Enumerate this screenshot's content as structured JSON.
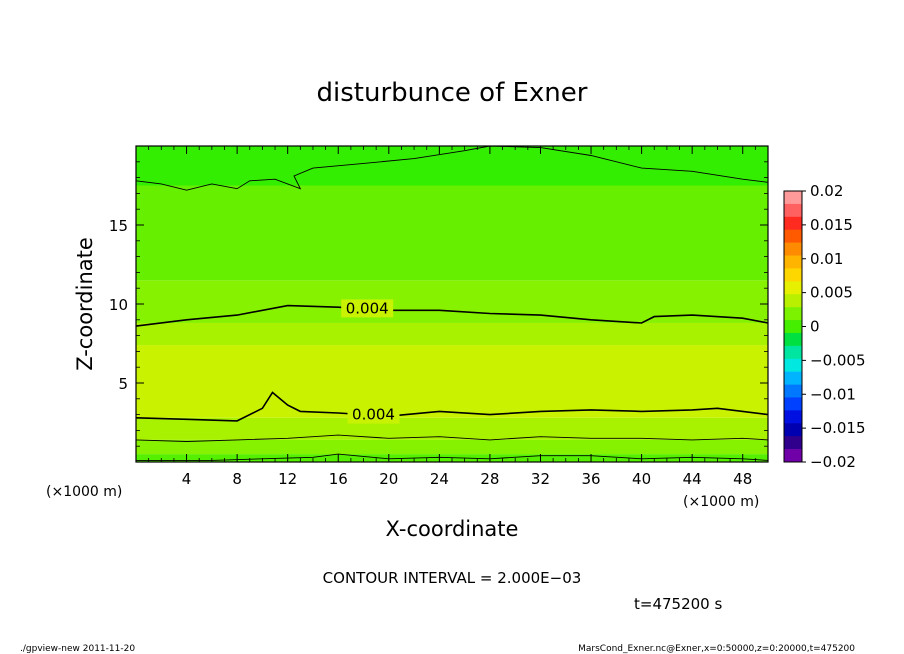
{
  "chart_data": {
    "type": "heatmap",
    "title": "disturbunce of Exner",
    "xlabel": "X-coordinate",
    "ylabel": "Z-coordinate",
    "x_unit": "(×1000 m)",
    "y_unit": "(×1000 m)",
    "xlim": [
      0,
      50
    ],
    "ylim": [
      0,
      20
    ],
    "x_ticks": [
      "4",
      "8",
      "12",
      "16",
      "20",
      "24",
      "28",
      "32",
      "36",
      "40",
      "44",
      "48"
    ],
    "y_ticks": [
      "5",
      "10",
      "15"
    ],
    "x_tick_values": [
      4,
      8,
      12,
      16,
      20,
      24,
      28,
      32,
      36,
      40,
      44,
      48
    ],
    "y_tick_values": [
      5,
      10,
      15
    ],
    "colorbar": {
      "ticks": [
        "0.02",
        "0.015",
        "0.01",
        "0.005",
        "0",
        "−0.005",
        "−0.01",
        "−0.015",
        "−0.02"
      ],
      "tick_values": [
        0.02,
        0.015,
        0.01,
        0.005,
        0,
        -0.005,
        -0.01,
        -0.015,
        -0.02
      ],
      "levels": [
        0.02,
        0.018,
        0.016,
        0.014,
        0.012,
        0.01,
        0.008,
        0.006,
        0.004,
        0.002,
        0,
        -0.002,
        -0.004,
        -0.006,
        -0.008,
        -0.01,
        -0.012,
        -0.014,
        -0.016,
        -0.018,
        -0.02
      ],
      "colors": [
        "#ff9a9a",
        "#ff6060",
        "#ff2a20",
        "#ff5a00",
        "#ff8c00",
        "#ffb400",
        "#ffd700",
        "#e6f000",
        "#b8f000",
        "#7cf200",
        "#46ee00",
        "#00e040",
        "#00e6a0",
        "#00e8e0",
        "#00b4ff",
        "#0078ff",
        "#0040ff",
        "#0010e0",
        "#0000b0",
        "#30008c",
        "#7000a8"
      ]
    },
    "bands": [
      {
        "z_bottom": 0.0,
        "z_top": 0.5,
        "value_range": [
          0.002,
          0.004
        ],
        "color": "#55f000"
      },
      {
        "z_bottom": 0.5,
        "z_top": 1.4,
        "value_range": [
          0.004,
          0.006
        ],
        "color": "#86f200"
      },
      {
        "z_bottom": 1.4,
        "z_top": 2.8,
        "value_range": [
          0.006,
          0.008
        ],
        "color": "#a8f200"
      },
      {
        "z_bottom": 2.8,
        "z_top": 7.4,
        "value_range": [
          0.008,
          0.01
        ],
        "color": "#c8f200"
      },
      {
        "z_bottom": 7.4,
        "z_top": 8.8,
        "value_range": [
          0.006,
          0.008
        ],
        "color": "#a8f200"
      },
      {
        "z_bottom": 8.8,
        "z_top": 11.5,
        "value_range": [
          0.004,
          0.006
        ],
        "color": "#86f200"
      },
      {
        "z_bottom": 11.5,
        "z_top": 17.5,
        "value_range": [
          0.002,
          0.004
        ],
        "color": "#66f000"
      },
      {
        "z_bottom": 17.5,
        "z_top": 20.0,
        "value_range": [
          0.0,
          0.002
        ],
        "color": "#33ee00"
      }
    ],
    "contours": [
      {
        "value": 0.004,
        "label": "0.004",
        "label_x": 18.0,
        "points": [
          [
            0,
            2.8
          ],
          [
            4,
            2.7
          ],
          [
            8,
            2.6
          ],
          [
            10,
            3.4
          ],
          [
            10.8,
            4.4
          ],
          [
            12,
            3.6
          ],
          [
            13,
            3.2
          ],
          [
            16,
            3.1
          ],
          [
            20,
            2.9
          ],
          [
            24,
            3.2
          ],
          [
            28,
            3.0
          ],
          [
            32,
            3.2
          ],
          [
            36,
            3.3
          ],
          [
            40,
            3.2
          ],
          [
            44,
            3.3
          ],
          [
            46,
            3.4
          ],
          [
            50,
            3.0
          ]
        ]
      },
      {
        "value": 0.004,
        "label": "0.004",
        "label_x": 17.5,
        "points": [
          [
            0,
            8.6
          ],
          [
            4,
            9.0
          ],
          [
            8,
            9.3
          ],
          [
            12,
            9.9
          ],
          [
            16,
            9.8
          ],
          [
            20,
            9.6
          ],
          [
            24,
            9.6
          ],
          [
            28,
            9.4
          ],
          [
            32,
            9.3
          ],
          [
            36,
            9.0
          ],
          [
            40,
            8.8
          ],
          [
            41,
            9.2
          ],
          [
            44,
            9.3
          ],
          [
            48,
            9.1
          ],
          [
            50,
            8.8
          ]
        ]
      },
      {
        "value": 0.006,
        "label": "",
        "points": [
          [
            0,
            1.4
          ],
          [
            4,
            1.3
          ],
          [
            8,
            1.4
          ],
          [
            12,
            1.5
          ],
          [
            16,
            1.7
          ],
          [
            20,
            1.5
          ],
          [
            24,
            1.6
          ],
          [
            28,
            1.4
          ],
          [
            32,
            1.6
          ],
          [
            36,
            1.5
          ],
          [
            40,
            1.5
          ],
          [
            44,
            1.4
          ],
          [
            48,
            1.5
          ],
          [
            50,
            1.4
          ]
        ]
      },
      {
        "value": 0.002,
        "label": "",
        "points": [
          [
            0,
            0.1
          ],
          [
            6,
            0.1
          ],
          [
            10,
            0.2
          ],
          [
            14,
            0.3
          ],
          [
            16,
            0.5
          ],
          [
            20,
            0.2
          ],
          [
            24,
            0.3
          ],
          [
            28,
            0.2
          ],
          [
            32,
            0.4
          ],
          [
            36,
            0.4
          ],
          [
            40,
            0.2
          ],
          [
            44,
            0.3
          ],
          [
            48,
            0.2
          ],
          [
            50,
            0.1
          ]
        ]
      },
      {
        "value": 0.002,
        "label": "",
        "points": [
          [
            0,
            17.8
          ],
          [
            2,
            17.6
          ],
          [
            4,
            17.2
          ],
          [
            6,
            17.6
          ],
          [
            8,
            17.3
          ],
          [
            9,
            17.8
          ],
          [
            11,
            17.9
          ],
          [
            13,
            17.3
          ],
          [
            12.5,
            18.1
          ],
          [
            14,
            18.6
          ],
          [
            18,
            18.9
          ],
          [
            22,
            19.2
          ],
          [
            26,
            19.7
          ],
          [
            28,
            20.0
          ],
          [
            32,
            19.9
          ],
          [
            36,
            19.4
          ],
          [
            40,
            18.6
          ],
          [
            44,
            18.4
          ],
          [
            48,
            17.9
          ],
          [
            50,
            17.7
          ]
        ]
      }
    ],
    "grid": false,
    "legend": "right"
  },
  "annotations": {
    "contour_interval": "CONTOUR INTERVAL = 2.000E−03",
    "time": "t=475200 s",
    "footer_left": "./gpview-new   2011-11-20",
    "footer_right": "MarsCond_Exner.nc@Exner,x=0:50000,z=0:20000,t=475200"
  }
}
